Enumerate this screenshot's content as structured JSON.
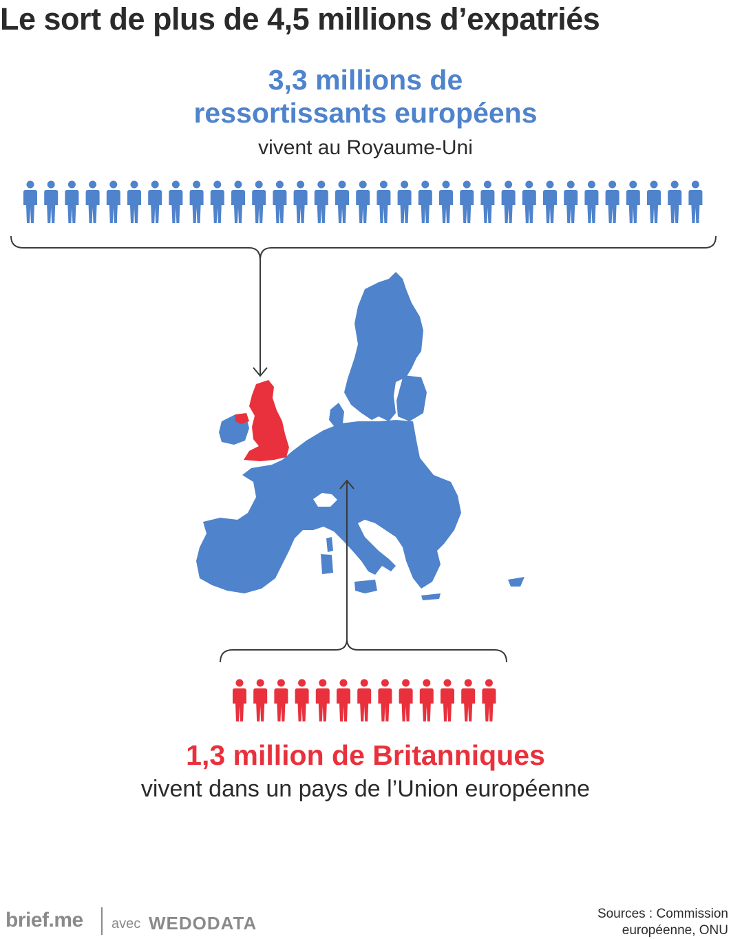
{
  "title": "Le sort de plus de 4,5 millions d’expatriés",
  "eu_group": {
    "headline_line1": "3,3 millions de",
    "headline_line2": "ressortissants européens",
    "subline": "vivent au Royaume-Uni",
    "icon_count": 33,
    "color": "#4f83cc"
  },
  "uk_group": {
    "headline": "1,3 million de Britanniques",
    "subline": "vivent dans un pays de l’Union européenne",
    "icon_count": 13,
    "color": "#e8313c"
  },
  "map": {
    "eu_color": "#4f83cc",
    "uk_color": "#e8313c",
    "icon": "europe-map-icon"
  },
  "footer": {
    "brand": "brief.me",
    "with": "avec",
    "partner": "WEDODATA",
    "sources_line1": "Sources : Commission",
    "sources_line2": "européenne, ONU"
  }
}
